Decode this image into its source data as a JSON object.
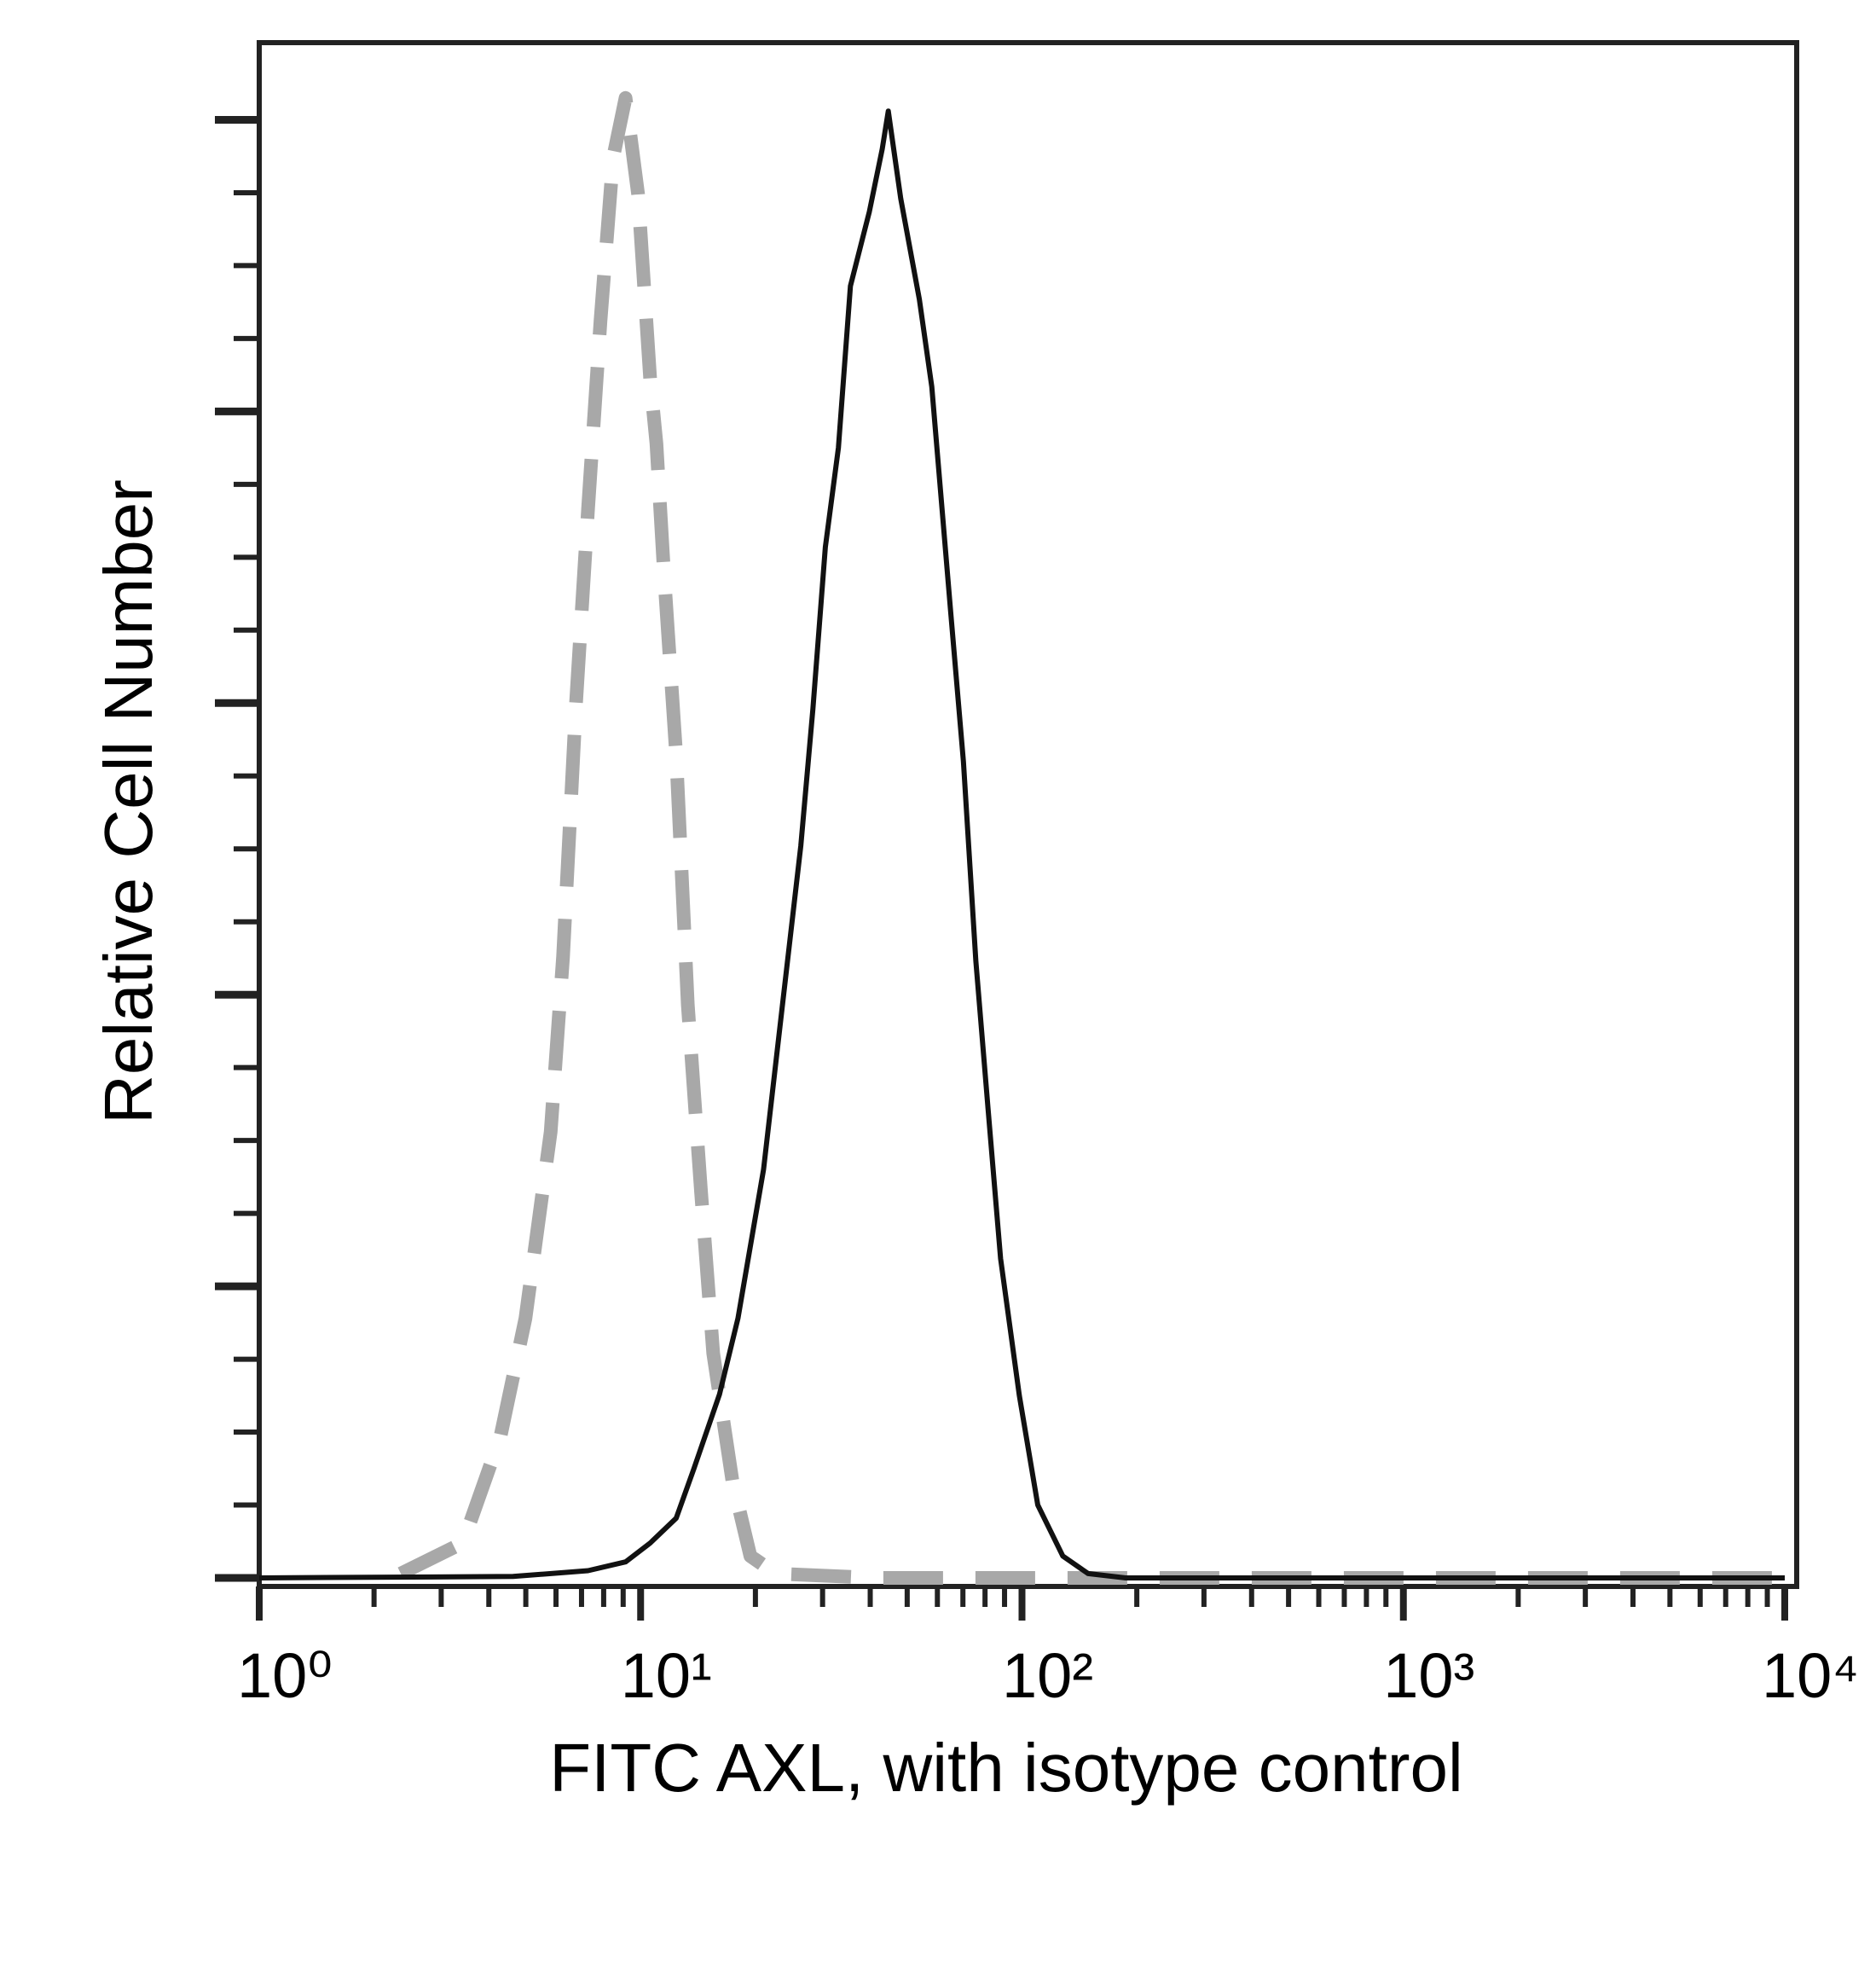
{
  "chart_data": {
    "type": "line",
    "x_label": "FITC AXL, with isotype control",
    "y_label": "Relative Cell Number",
    "x_log": true,
    "xlim": [
      1,
      10000
    ],
    "xticks": [
      {
        "value": 1,
        "label": "10⁰"
      },
      {
        "value": 10,
        "label": "10¹"
      },
      {
        "value": 100,
        "label": "10²"
      },
      {
        "value": 1000,
        "label": "10³"
      },
      {
        "value": 10000,
        "label": "10⁴"
      }
    ],
    "xminor_ticks": [
      2,
      3,
      4,
      5,
      6,
      7,
      8,
      9,
      20,
      30,
      40,
      50,
      60,
      70,
      80,
      90,
      200,
      300,
      400,
      500,
      600,
      700,
      800,
      900,
      2000,
      3000,
      4000,
      5000,
      6000,
      7000,
      8000,
      9000
    ],
    "ylim": [
      0,
      105
    ],
    "yticks": [
      0,
      5,
      10,
      15,
      20,
      25,
      30,
      35,
      40,
      45,
      50,
      55,
      60,
      65,
      70,
      75,
      80,
      85,
      90,
      95,
      100
    ],
    "series": [
      {
        "color": "#a8a8a8",
        "style": "dashed",
        "x": [
          2.35,
          3.42,
          4.29,
          4.99,
          5.81,
          6.26,
          6.76,
          7.28,
          7.85,
          8.47,
          9.13,
          9.85,
          10.6,
          11.0,
          11.5,
          12.4,
          13.3,
          14.4,
          15.5,
          17.4,
          19.4,
          22.6,
          41.4,
          10000
        ],
        "values": [
          0.3,
          2.4,
          9.7,
          17.8,
          30.6,
          42.6,
          59.7,
          73.3,
          86.2,
          97.4,
          101.5,
          94.9,
          82.1,
          77.8,
          69.2,
          56.4,
          39.3,
          26.5,
          15.4,
          6.7,
          1.5,
          0.3,
          0,
          0
        ]
      },
      {
        "color": "#111111",
        "style": "solid",
        "x": [
          1,
          4.63,
          7.28,
          9.13,
          10.6,
          12.4,
          13.8,
          16.1,
          18.0,
          21.0,
          23.5,
          26.3,
          28.3,
          30.5,
          33.0,
          35.5,
          39.8,
          43.0,
          44.6,
          48.1,
          53.8,
          58.0,
          65.0,
          70.2,
          75.7,
          81.5,
          87.9,
          98.4,
          110,
          128,
          149,
          187,
          10000
        ],
        "values": [
          0,
          0.1,
          0.5,
          1.1,
          2.4,
          4.1,
          7.5,
          12.6,
          17.8,
          28.0,
          39.1,
          50.2,
          59.6,
          70.7,
          77.5,
          88.6,
          93.7,
          98.0,
          100.6,
          94.6,
          87.7,
          81.7,
          66.3,
          56.0,
          42.3,
          32.1,
          21.9,
          12.5,
          5.0,
          1.5,
          0.3,
          0,
          0
        ]
      }
    ]
  }
}
